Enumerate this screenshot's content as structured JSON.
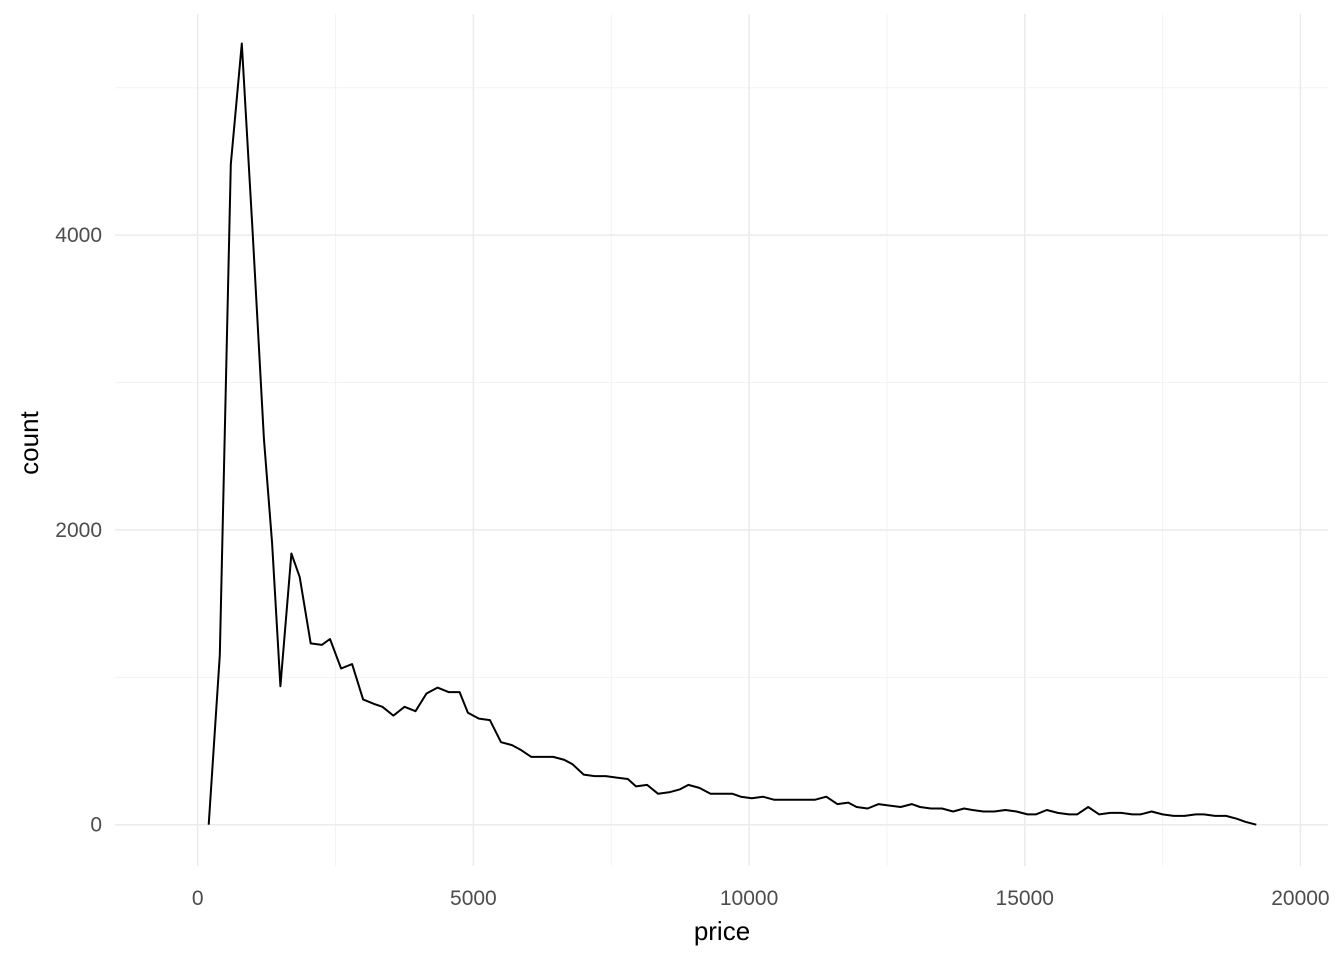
{
  "chart_data": {
    "type": "line",
    "title": "",
    "xlabel": "price",
    "ylabel": "count",
    "xlim": [
      -1500,
      20500
    ],
    "ylim": [
      -280,
      5500
    ],
    "x_ticks": [
      0,
      5000,
      10000,
      15000,
      20000
    ],
    "x_tick_labels": [
      "0",
      "5000",
      "10000",
      "15000",
      "20000"
    ],
    "y_ticks": [
      0,
      2000,
      4000
    ],
    "y_tick_labels": [
      "0",
      "2000",
      "4000"
    ],
    "grid": true,
    "legend": "none",
    "series": [
      {
        "color": "#000000",
        "x": [
          200,
          400,
          600,
          800,
          1000,
          1200,
          1350,
          1500,
          1700,
          1850,
          2050,
          2250,
          2400,
          2600,
          2800,
          3000,
          3200,
          3350,
          3550,
          3750,
          3950,
          4150,
          4350,
          4550,
          4750,
          4900,
          5100,
          5300,
          5500,
          5700,
          5850,
          6050,
          6250,
          6450,
          6650,
          6800,
          7000,
          7200,
          7400,
          7600,
          7800,
          7950,
          8150,
          8350,
          8550,
          8750,
          8900,
          9100,
          9300,
          9500,
          9700,
          9850,
          10050,
          10250,
          10450,
          10650,
          10850,
          11000,
          11200,
          11400,
          11600,
          11800,
          11950,
          12150,
          12350,
          12550,
          12750,
          12950,
          13100,
          13300,
          13500,
          13700,
          13900,
          14050,
          14250,
          14450,
          14650,
          14850,
          15050,
          15200,
          15400,
          15600,
          15800,
          15950,
          16150,
          16350,
          16550,
          16750,
          16950,
          17100,
          17300,
          17500,
          17700,
          17900,
          18100,
          18250,
          18450,
          18650,
          18850,
          19000,
          19200
        ],
        "y": [
          0,
          1150,
          4480,
          5300,
          4000,
          2620,
          1910,
          940,
          1840,
          1680,
          1230,
          1220,
          1260,
          1060,
          1090,
          850,
          820,
          800,
          740,
          800,
          770,
          890,
          930,
          900,
          900,
          760,
          720,
          710,
          560,
          540,
          510,
          460,
          460,
          460,
          440,
          410,
          340,
          330,
          330,
          320,
          310,
          260,
          270,
          210,
          220,
          240,
          270,
          250,
          210,
          210,
          210,
          190,
          180,
          190,
          170,
          170,
          170,
          170,
          170,
          190,
          140,
          150,
          120,
          110,
          140,
          130,
          120,
          140,
          120,
          110,
          110,
          90,
          110,
          100,
          90,
          90,
          100,
          90,
          70,
          70,
          100,
          80,
          70,
          70,
          120,
          70,
          80,
          80,
          70,
          70,
          90,
          70,
          60,
          60,
          70,
          70,
          60,
          60,
          40,
          20,
          0
        ]
      }
    ]
  }
}
